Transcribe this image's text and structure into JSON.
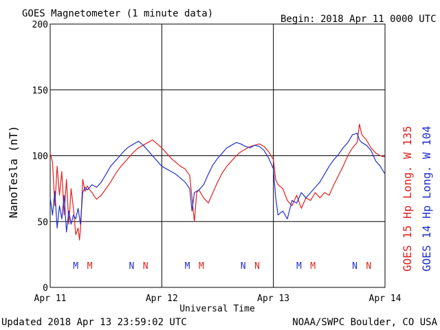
{
  "title": "GOES Magnetometer (1 minute data)",
  "begin_label": "Begin:",
  "begin_value": "2018 Apr 11 0000 UTC",
  "updated": "Updated 2018 Apr 13 23:59:02 UTC",
  "credit": "NOAA/SWPC Boulder, CO USA",
  "colors": {
    "goes15": "#e0201c",
    "goes14": "#1f2fd0",
    "grid": "#000000"
  },
  "chart_data": {
    "type": "line",
    "title": "GOES Magnetometer (1 minute data)",
    "xlabel": "Universal Time",
    "ylabel": "NanoTesla (nT)",
    "x_unit": "hours since 2018 Apr 11 0000 UTC",
    "xlim": [
      0,
      72
    ],
    "ylim": [
      0,
      200
    ],
    "y_ticks": [
      0,
      50,
      100,
      150,
      200
    ],
    "x_tick_labels": [
      {
        "x": 0,
        "label": "Apr 11"
      },
      {
        "x": 24,
        "label": "Apr 12"
      },
      {
        "x": 48,
        "label": "Apr 13"
      },
      {
        "x": 72,
        "label": "Apr 14"
      }
    ],
    "grid": true,
    "series": [
      {
        "name": "GOES 15 Hp Long. W 135",
        "legend_lines": [
          "GOES 15 Hp",
          "Long. W 135"
        ],
        "color": "#e0201c",
        "points": [
          [
            0,
            102
          ],
          [
            0.5,
            95
          ],
          [
            1,
            62
          ],
          [
            1.5,
            92
          ],
          [
            2,
            70
          ],
          [
            2.5,
            88
          ],
          [
            3,
            55
          ],
          [
            3.5,
            82
          ],
          [
            4,
            48
          ],
          [
            4.5,
            75
          ],
          [
            5,
            60
          ],
          [
            5.5,
            40
          ],
          [
            6,
            45
          ],
          [
            6.3,
            36
          ],
          [
            6.6,
            48
          ],
          [
            7,
            82
          ],
          [
            7.5,
            73
          ],
          [
            8,
            77
          ],
          [
            8.5,
            74
          ],
          [
            9,
            72
          ],
          [
            9.5,
            69
          ],
          [
            10,
            67
          ],
          [
            11,
            70
          ],
          [
            12,
            75
          ],
          [
            13,
            80
          ],
          [
            14,
            86
          ],
          [
            15,
            91
          ],
          [
            16,
            95
          ],
          [
            17,
            99
          ],
          [
            18,
            103
          ],
          [
            19,
            106
          ],
          [
            20,
            108
          ],
          [
            21,
            110
          ],
          [
            22,
            112
          ],
          [
            23,
            109
          ],
          [
            24,
            106
          ],
          [
            25,
            102
          ],
          [
            26,
            98
          ],
          [
            27,
            95
          ],
          [
            28,
            92
          ],
          [
            29,
            90
          ],
          [
            30,
            85
          ],
          [
            30.5,
            68
          ],
          [
            31,
            50
          ],
          [
            31.5,
            72
          ],
          [
            32,
            74
          ],
          [
            33,
            68
          ],
          [
            34,
            64
          ],
          [
            35,
            72
          ],
          [
            36,
            80
          ],
          [
            37,
            87
          ],
          [
            38,
            92
          ],
          [
            39,
            96
          ],
          [
            40,
            100
          ],
          [
            41,
            103
          ],
          [
            42,
            105
          ],
          [
            43,
            107
          ],
          [
            44,
            108
          ],
          [
            45,
            109
          ],
          [
            46,
            107
          ],
          [
            47,
            103
          ],
          [
            48,
            97
          ],
          [
            48.5,
            82
          ],
          [
            49,
            78
          ],
          [
            50,
            75
          ],
          [
            51,
            66
          ],
          [
            52,
            62
          ],
          [
            53,
            70
          ],
          [
            54,
            60
          ],
          [
            55,
            68
          ],
          [
            56,
            66
          ],
          [
            57,
            72
          ],
          [
            58,
            68
          ],
          [
            59,
            72
          ],
          [
            60,
            70
          ],
          [
            61,
            78
          ],
          [
            62,
            85
          ],
          [
            63,
            92
          ],
          [
            64,
            100
          ],
          [
            65,
            106
          ],
          [
            66,
            110
          ],
          [
            66.5,
            124
          ],
          [
            67,
            116
          ],
          [
            68,
            112
          ],
          [
            69,
            106
          ],
          [
            70,
            102
          ],
          [
            71,
            100
          ],
          [
            72,
            99
          ]
        ]
      },
      {
        "name": "GOES 14 Hp Long. W 104",
        "legend_lines": [
          "GOES 14 Hp",
          "Long. W 104"
        ],
        "color": "#1f2fd0",
        "points": [
          [
            0,
            68
          ],
          [
            0.5,
            55
          ],
          [
            1,
            73
          ],
          [
            1.5,
            45
          ],
          [
            2,
            62
          ],
          [
            2.5,
            52
          ],
          [
            3,
            70
          ],
          [
            3.5,
            42
          ],
          [
            4,
            58
          ],
          [
            4.5,
            48
          ],
          [
            5,
            55
          ],
          [
            5.5,
            52
          ],
          [
            6,
            60
          ],
          [
            6.5,
            48
          ],
          [
            7,
            72
          ],
          [
            7.5,
            76
          ],
          [
            8,
            74
          ],
          [
            9,
            78
          ],
          [
            10,
            76
          ],
          [
            11,
            80
          ],
          [
            12,
            86
          ],
          [
            13,
            92
          ],
          [
            14,
            96
          ],
          [
            15,
            100
          ],
          [
            16,
            104
          ],
          [
            17,
            107
          ],
          [
            18,
            109
          ],
          [
            19,
            111
          ],
          [
            20,
            108
          ],
          [
            21,
            104
          ],
          [
            22,
            100
          ],
          [
            23,
            96
          ],
          [
            24,
            92
          ],
          [
            25,
            90
          ],
          [
            26,
            88
          ],
          [
            27,
            86
          ],
          [
            28,
            83
          ],
          [
            29,
            80
          ],
          [
            30,
            75
          ],
          [
            30.5,
            58
          ],
          [
            31,
            72
          ],
          [
            32,
            74
          ],
          [
            33,
            78
          ],
          [
            34,
            86
          ],
          [
            35,
            93
          ],
          [
            36,
            98
          ],
          [
            37,
            102
          ],
          [
            38,
            106
          ],
          [
            39,
            108
          ],
          [
            40,
            110
          ],
          [
            41,
            109
          ],
          [
            42,
            107
          ],
          [
            43,
            106
          ],
          [
            44,
            108
          ],
          [
            45,
            107
          ],
          [
            46,
            104
          ],
          [
            47,
            98
          ],
          [
            48,
            90
          ],
          [
            48.5,
            68
          ],
          [
            49,
            55
          ],
          [
            50,
            58
          ],
          [
            51,
            52
          ],
          [
            52,
            66
          ],
          [
            53,
            64
          ],
          [
            54,
            72
          ],
          [
            55,
            68
          ],
          [
            56,
            72
          ],
          [
            57,
            76
          ],
          [
            58,
            80
          ],
          [
            59,
            86
          ],
          [
            60,
            92
          ],
          [
            61,
            97
          ],
          [
            62,
            101
          ],
          [
            63,
            106
          ],
          [
            64,
            110
          ],
          [
            65,
            116
          ],
          [
            66,
            117
          ],
          [
            66.5,
            112
          ],
          [
            67,
            110
          ],
          [
            68,
            108
          ],
          [
            69,
            104
          ],
          [
            70,
            96
          ],
          [
            71,
            92
          ],
          [
            72,
            86
          ]
        ]
      }
    ],
    "markers": [
      {
        "x": 5.5,
        "label": "M",
        "series": "GOES 14"
      },
      {
        "x": 8.5,
        "label": "M",
        "series": "GOES 15"
      },
      {
        "x": 17.5,
        "label": "N",
        "series": "GOES 14"
      },
      {
        "x": 20.5,
        "label": "N",
        "series": "GOES 15"
      },
      {
        "x": 29.5,
        "label": "M",
        "series": "GOES 14"
      },
      {
        "x": 32.5,
        "label": "M",
        "series": "GOES 15"
      },
      {
        "x": 41.5,
        "label": "N",
        "series": "GOES 14"
      },
      {
        "x": 44.5,
        "label": "N",
        "series": "GOES 15"
      },
      {
        "x": 53.5,
        "label": "M",
        "series": "GOES 14"
      },
      {
        "x": 56.5,
        "label": "M",
        "series": "GOES 15"
      },
      {
        "x": 65.5,
        "label": "N",
        "series": "GOES 14"
      },
      {
        "x": 68.5,
        "label": "N",
        "series": "GOES 15"
      }
    ]
  }
}
